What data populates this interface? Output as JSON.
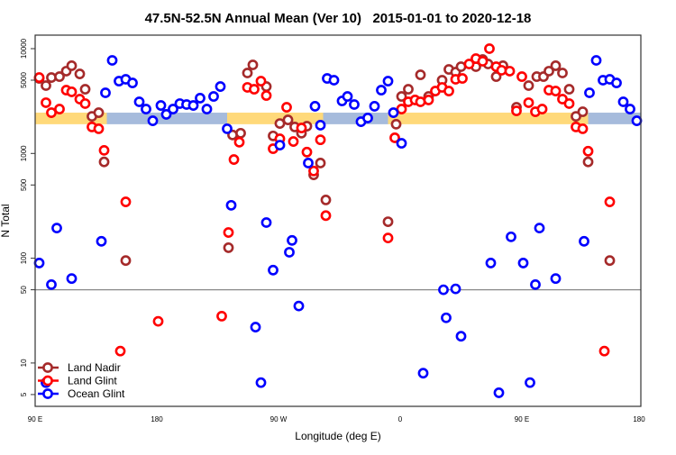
{
  "chart_data": {
    "type": "scatter",
    "title": "47.5N-52.5N Annual Mean (Ver 10)   2015-01-01 to 2020-12-18",
    "xlabel": "Longitude (deg E)",
    "ylabel": "N Total",
    "x_ticks": [
      "90 E",
      "180",
      "90 W",
      "0",
      "90 E",
      "180"
    ],
    "x_tick_values": [
      90,
      180,
      -90,
      0,
      90,
      180
    ],
    "x_range_note": "longitude axis runs 90E eastward through 180 and 0 to 180 again",
    "y_scale": "log",
    "y_ticks": [
      5,
      10,
      50,
      100,
      500,
      1000,
      5000,
      10000
    ],
    "ylim": [
      4,
      13000
    ],
    "reference_line": 50,
    "grid": false,
    "legend_position": "bottom-left",
    "band": {
      "value_range": [
        1900,
        2450
      ],
      "colors": {
        "land": "#FFD97A",
        "ocean": "#A6BBDC"
      },
      "segments": [
        {
          "type": "land",
          "lon": [
            90,
            143
          ]
        },
        {
          "type": "ocean",
          "lon": [
            143,
            -128
          ]
        },
        {
          "type": "land",
          "lon": [
            -128,
            -57
          ]
        },
        {
          "type": "ocean",
          "lon": [
            -57,
            -9
          ]
        },
        {
          "type": "land",
          "lon": [
            -9,
            139
          ]
        },
        {
          "type": "ocean",
          "lon": [
            139,
            180
          ]
        }
      ]
    },
    "series": [
      {
        "name": "Land Nadir",
        "color": "#A52A2A",
        "points": [
          [
            93,
            5200
          ],
          [
            98,
            4440
          ],
          [
            102,
            5300
          ],
          [
            108,
            5410
          ],
          [
            113,
            6100
          ],
          [
            117,
            6870
          ],
          [
            123,
            5740
          ],
          [
            127,
            4100
          ],
          [
            132,
            2260
          ],
          [
            137,
            2450
          ],
          [
            141,
            830
          ],
          [
            157,
            95
          ],
          [
            -127,
            126
          ],
          [
            -124,
            1500
          ],
          [
            -118,
            1560
          ],
          [
            -113,
            5860
          ],
          [
            -109,
            7000
          ],
          [
            -99,
            4350
          ],
          [
            -94,
            1470
          ],
          [
            -89,
            1930
          ],
          [
            -83,
            2090
          ],
          [
            -78,
            1790
          ],
          [
            -73,
            1560
          ],
          [
            -69,
            1820
          ],
          [
            -64,
            625
          ],
          [
            -59,
            810
          ],
          [
            -55,
            360
          ],
          [
            -9,
            223
          ],
          [
            -3,
            1900
          ],
          [
            1,
            3500
          ],
          [
            6,
            4100
          ],
          [
            15,
            5630
          ],
          [
            21,
            3500
          ],
          [
            31,
            5000
          ],
          [
            36,
            6340
          ],
          [
            41,
            5970
          ],
          [
            45,
            6730
          ],
          [
            56,
            6730
          ],
          [
            61,
            7880
          ],
          [
            65,
            7140
          ],
          [
            71,
            5410
          ],
          [
            76,
            6870
          ],
          [
            86,
            2760
          ],
          [
            95,
            4440
          ],
          [
            101,
            5410
          ],
          [
            106,
            5410
          ],
          [
            110,
            6100
          ],
          [
            115,
            6870
          ],
          [
            120,
            5860
          ],
          [
            125,
            4100
          ],
          [
            130,
            2260
          ],
          [
            135,
            2500
          ],
          [
            139,
            830
          ],
          [
            155,
            95
          ]
        ]
      },
      {
        "name": "Land Glint",
        "color": "#FF0000",
        "points": [
          [
            93,
            5300
          ],
          [
            98,
            3050
          ],
          [
            102,
            2450
          ],
          [
            108,
            2650
          ],
          [
            113,
            4020
          ],
          [
            117,
            3870
          ],
          [
            123,
            3300
          ],
          [
            127,
            2990
          ],
          [
            132,
            1790
          ],
          [
            137,
            1720
          ],
          [
            141,
            1070
          ],
          [
            153,
            13
          ],
          [
            157,
            345
          ],
          [
            -179,
            25
          ],
          [
            -132,
            28
          ],
          [
            -127,
            176
          ],
          [
            -123,
            875
          ],
          [
            -119,
            1280
          ],
          [
            -113,
            4270
          ],
          [
            -108,
            4100
          ],
          [
            -103,
            4900
          ],
          [
            -99,
            3570
          ],
          [
            -94,
            1110
          ],
          [
            -89,
            1380
          ],
          [
            -84,
            2760
          ],
          [
            -79,
            1300
          ],
          [
            -73,
            1750
          ],
          [
            -69,
            1030
          ],
          [
            -64,
            680
          ],
          [
            -59,
            1350
          ],
          [
            -55,
            255
          ],
          [
            -9,
            156
          ],
          [
            -4,
            1410
          ],
          [
            1,
            2650
          ],
          [
            6,
            3110
          ],
          [
            11,
            3240
          ],
          [
            15,
            3110
          ],
          [
            21,
            3240
          ],
          [
            26,
            3940
          ],
          [
            31,
            4270
          ],
          [
            36,
            3940
          ],
          [
            41,
            5100
          ],
          [
            46,
            5200
          ],
          [
            51,
            7140
          ],
          [
            56,
            8040
          ],
          [
            61,
            7580
          ],
          [
            66,
            10000
          ],
          [
            71,
            6730
          ],
          [
            75,
            6220
          ],
          [
            81,
            6100
          ],
          [
            86,
            2550
          ],
          [
            90,
            5410
          ],
          [
            95,
            3050
          ],
          [
            100,
            2500
          ],
          [
            105,
            2650
          ],
          [
            110,
            4020
          ],
          [
            115,
            3940
          ],
          [
            120,
            3300
          ],
          [
            125,
            2990
          ],
          [
            130,
            1790
          ],
          [
            135,
            1720
          ],
          [
            139,
            1050
          ],
          [
            151,
            13
          ],
          [
            155,
            345
          ]
        ]
      },
      {
        "name": "Ocean Glint",
        "color": "#0000FF",
        "points": [
          [
            93,
            90
          ],
          [
            98,
            6.5
          ],
          [
            102,
            56
          ],
          [
            106,
            194
          ],
          [
            117,
            64
          ],
          [
            139,
            145
          ],
          [
            142,
            3790
          ],
          [
            147,
            7730
          ],
          [
            152,
            4900
          ],
          [
            157,
            5100
          ],
          [
            162,
            4710
          ],
          [
            167,
            3110
          ],
          [
            172,
            2650
          ],
          [
            177,
            2050
          ],
          [
            -177,
            2870
          ],
          [
            -173,
            2360
          ],
          [
            -168,
            2650
          ],
          [
            -163,
            2990
          ],
          [
            -158,
            2930
          ],
          [
            -153,
            2870
          ],
          [
            -148,
            3370
          ],
          [
            -143,
            2650
          ],
          [
            -138,
            3500
          ],
          [
            -133,
            4350
          ],
          [
            -128,
            1720
          ],
          [
            -125,
            320
          ],
          [
            -107,
            22
          ],
          [
            -103,
            6.5
          ],
          [
            -99,
            219
          ],
          [
            -94,
            77
          ],
          [
            -89,
            1200
          ],
          [
            -82,
            114
          ],
          [
            -80,
            148
          ],
          [
            -75,
            35
          ],
          [
            -68,
            810
          ],
          [
            -63,
            2820
          ],
          [
            -59,
            1860
          ],
          [
            -54,
            5200
          ],
          [
            -49,
            5000
          ],
          [
            -43,
            3170
          ],
          [
            -39,
            3500
          ],
          [
            -34,
            2930
          ],
          [
            -29,
            2010
          ],
          [
            -24,
            2180
          ],
          [
            -19,
            2820
          ],
          [
            -14,
            4020
          ],
          [
            -9,
            4900
          ],
          [
            -5,
            2450
          ],
          [
            1,
            1250
          ],
          [
            17,
            8
          ],
          [
            32,
            50
          ],
          [
            34,
            27
          ],
          [
            41,
            51
          ],
          [
            45,
            18
          ],
          [
            67,
            90
          ],
          [
            73,
            5.2
          ],
          [
            82,
            160
          ],
          [
            91,
            90
          ],
          [
            96,
            6.5
          ],
          [
            100,
            56
          ],
          [
            103,
            194
          ],
          [
            115,
            64
          ],
          [
            136,
            145
          ],
          [
            140,
            3790
          ],
          [
            145,
            7730
          ],
          [
            150,
            5000
          ],
          [
            155,
            5100
          ],
          [
            160,
            4710
          ],
          [
            165,
            3110
          ],
          [
            170,
            2650
          ],
          [
            175,
            2050
          ]
        ]
      }
    ]
  }
}
